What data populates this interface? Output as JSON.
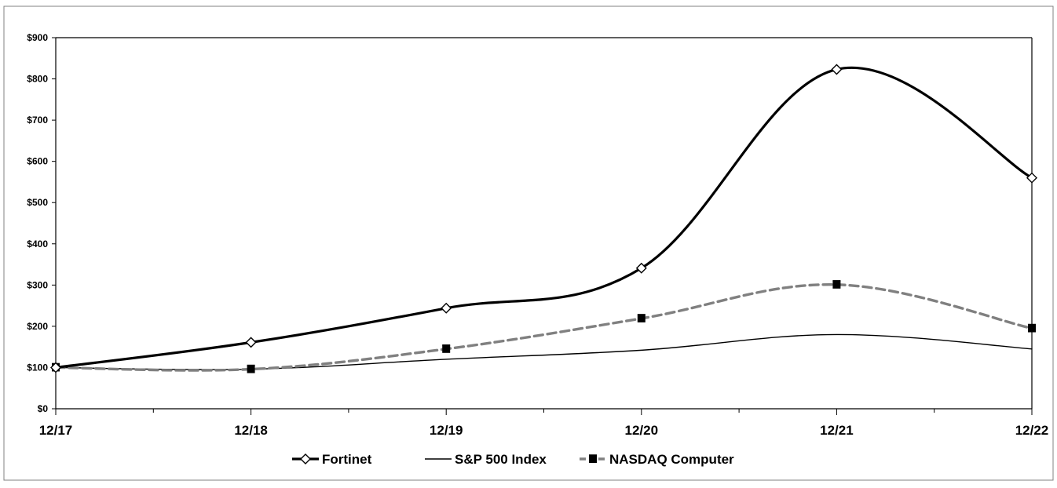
{
  "chart_data": {
    "type": "line",
    "title": "",
    "xlabel": "",
    "ylabel": "",
    "categories": [
      "12/17",
      "12/18",
      "12/19",
      "12/20",
      "12/21",
      "12/22"
    ],
    "ylim": [
      0,
      900
    ],
    "y_ticks": [
      "$0",
      "$100",
      "$200",
      "$300",
      "$400",
      "$500",
      "$600",
      "$700",
      "$800",
      "$900"
    ],
    "y_tick_values": [
      0,
      100,
      200,
      300,
      400,
      500,
      600,
      700,
      800,
      900
    ],
    "grid": false,
    "legend_position": "bottom",
    "series": [
      {
        "name": "Fortinet",
        "values": [
          100,
          161,
          244,
          341,
          823,
          560
        ],
        "color": "#000000",
        "marker": "diamond",
        "style": "solid-thick"
      },
      {
        "name": "S&P 500 Index",
        "values": [
          100,
          96,
          120,
          142,
          180,
          145
        ],
        "color": "#000000",
        "marker": "none",
        "style": "solid-thin"
      },
      {
        "name": "NASDAQ Computer",
        "values": [
          100,
          96,
          145,
          219,
          301,
          195
        ],
        "color": "#808080",
        "marker": "square",
        "style": "dashed"
      }
    ]
  }
}
